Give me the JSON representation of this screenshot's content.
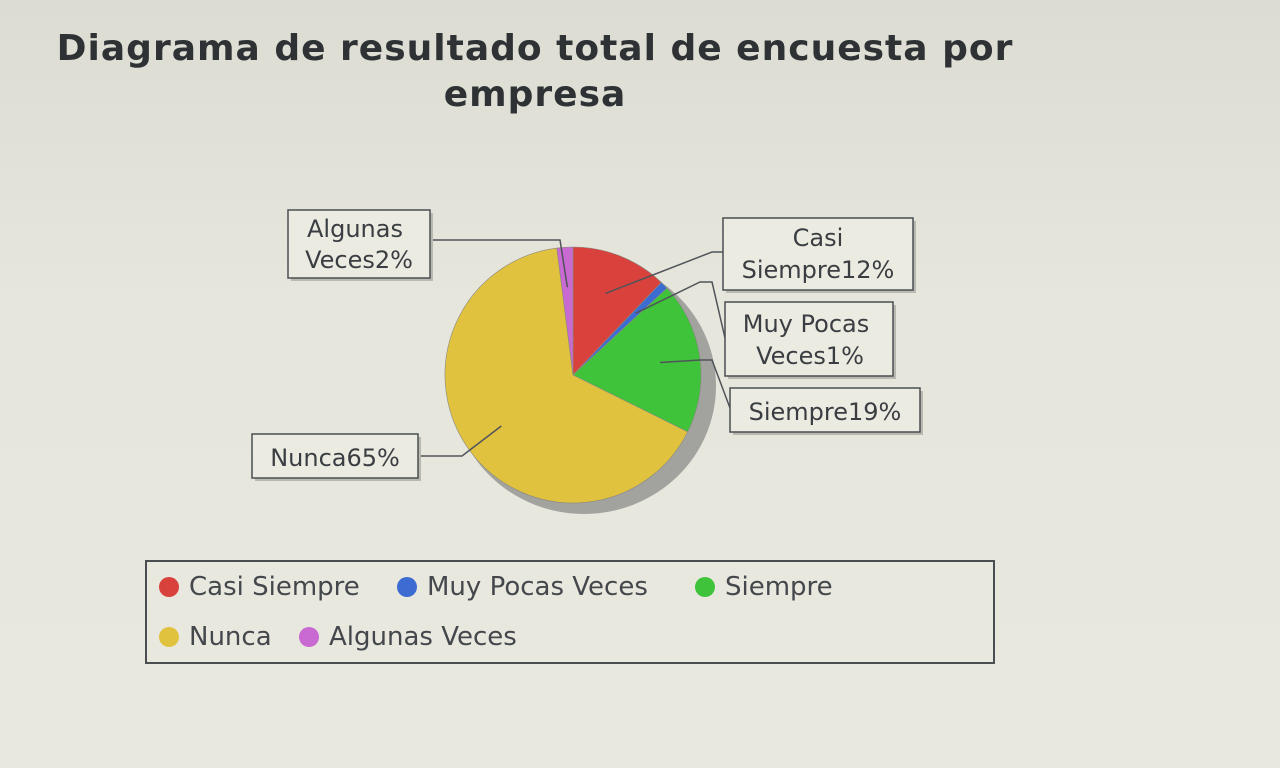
{
  "chart_data": {
    "type": "pie",
    "title": "Diagrama de resultado total de encuesta por empresa",
    "slices": [
      {
        "name": "Casi Siempre",
        "value": 12,
        "label": [
          "Casi",
          "Siempre12%"
        ],
        "color": "#d8413c"
      },
      {
        "name": "Muy Pocas Veces",
        "value": 1,
        "label": [
          "Muy Pocas",
          "Veces1%"
        ],
        "color": "#3c6bd2"
      },
      {
        "name": "Siempre",
        "value": 19,
        "label": [
          "Siempre19%"
        ],
        "color": "#3fc33b"
      },
      {
        "name": "Nunca",
        "value": 65,
        "label": [
          "Nunca65%"
        ],
        "color": "#e1c23f"
      },
      {
        "name": "Algunas Veces",
        "value": 2,
        "label": [
          "Algunas",
          "Veces2%"
        ],
        "color": "#c86ad2"
      }
    ],
    "legend_position": "bottom",
    "legend_rows": [
      [
        "Casi Siempre",
        "Muy Pocas Veces",
        "Siempre"
      ],
      [
        "Nunca",
        "Algunas Veces"
      ]
    ]
  }
}
